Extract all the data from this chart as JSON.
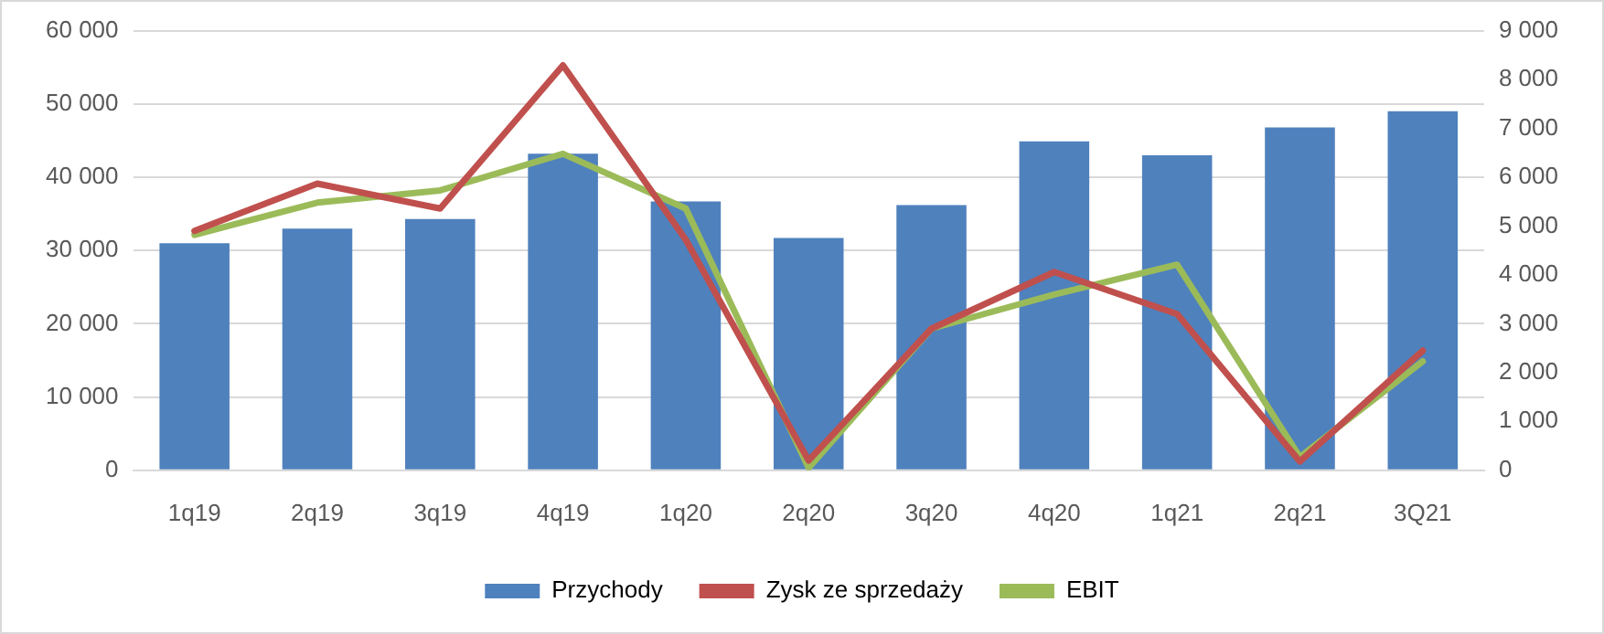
{
  "chart_data": {
    "type": "bar",
    "categories": [
      "1q19",
      "2q19",
      "3q19",
      "4q19",
      "1q20",
      "2q20",
      "3q20",
      "4q20",
      "1q21",
      "2q21",
      "3Q21"
    ],
    "series": [
      {
        "name": "Przychody",
        "color": "#4f81bd",
        "values": [
          31000,
          33000,
          34300,
          43200,
          36700,
          31700,
          36200,
          44900,
          43000,
          46800,
          49000
        ]
      },
      {
        "name": "Zysk ze sprzedaży",
        "type": "line",
        "axis": "y2",
        "color": "#c0504d",
        "values": [
          4900,
          5870,
          5360,
          8290,
          4720,
          200,
          2900,
          4060,
          3200,
          180,
          2450
        ]
      },
      {
        "name": "EBIT",
        "type": "line",
        "axis": "y2",
        "color": "#9bbb59",
        "values": [
          4820,
          5480,
          5730,
          6480,
          5360,
          50,
          2900,
          3600,
          4210,
          270,
          2230
        ]
      }
    ],
    "ylim": [
      0,
      60000
    ],
    "yticks": [
      0,
      {
        "value": 10000,
        "label": "10 000"
      },
      {
        "value": 20000,
        "label": "20 000"
      },
      {
        "value": 30000,
        "label": "30 000"
      },
      {
        "value": 40000,
        "label": "40 000"
      },
      {
        "value": 50000,
        "label": "50 000"
      },
      {
        "value": 60000,
        "label": "60 000"
      }
    ],
    "y2lim": [
      0,
      9000
    ],
    "y2ticks": [
      0,
      {
        "value": 1000,
        "label": "1 000"
      },
      {
        "value": 2000,
        "label": "2 000"
      },
      {
        "value": 3000,
        "label": "3 000"
      },
      {
        "value": 4000,
        "label": "4 000"
      },
      {
        "value": 5000,
        "label": "5 000"
      },
      {
        "value": 6000,
        "label": "6 000"
      },
      {
        "value": 7000,
        "label": "7 000"
      },
      {
        "value": 8000,
        "label": "8 000"
      },
      {
        "value": 9000,
        "label": "9 000"
      }
    ],
    "grid": "y",
    "legend": "bottom",
    "marker": "none",
    "line_style": "solid"
  }
}
